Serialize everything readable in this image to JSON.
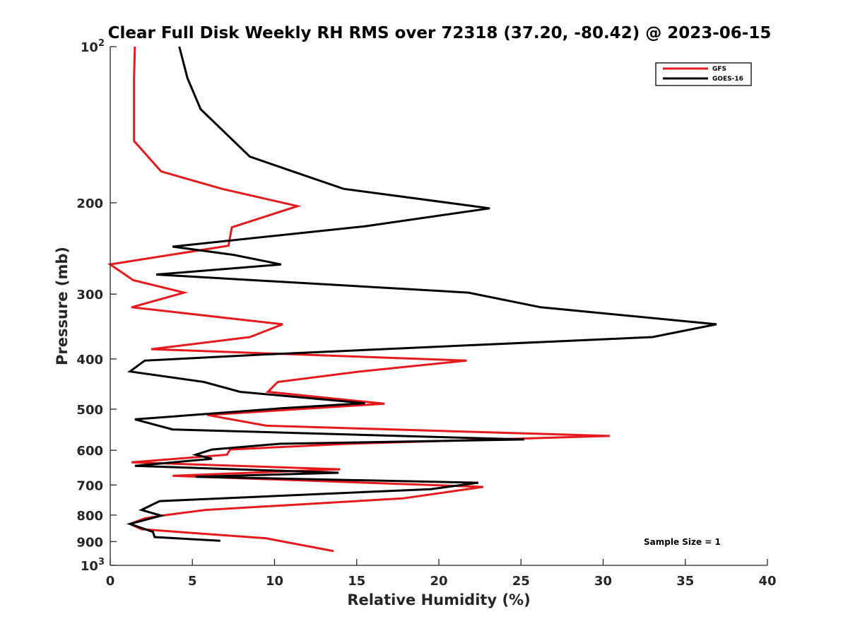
{
  "chart_data": {
    "type": "line",
    "title": "Clear Full Disk Weekly RH RMS over 72318 (37.20, -80.42) @ 2023-06-15",
    "xlabel": "Relative Humidity (%)",
    "ylabel": "Pressure (mb)",
    "xlim": [
      0,
      40
    ],
    "ylim": [
      100,
      1000
    ],
    "y_scale": "log",
    "y_reversed": true,
    "grid": false,
    "legend_position": "top-right",
    "x_ticks": [
      {
        "value": 0,
        "label": "0"
      },
      {
        "value": 5,
        "label": "5"
      },
      {
        "value": 10,
        "label": "10"
      },
      {
        "value": 15,
        "label": "15"
      },
      {
        "value": 20,
        "label": "20"
      },
      {
        "value": 25,
        "label": "25"
      },
      {
        "value": 30,
        "label": "30"
      },
      {
        "value": 35,
        "label": "35"
      },
      {
        "value": 40,
        "label": "40"
      }
    ],
    "y_ticks": [
      {
        "value": 100,
        "base": "10",
        "exp": "2"
      },
      {
        "value": 200,
        "label": "200"
      },
      {
        "value": 300,
        "label": "300"
      },
      {
        "value": 400,
        "label": "400"
      },
      {
        "value": 500,
        "label": "500"
      },
      {
        "value": 600,
        "label": "600"
      },
      {
        "value": 700,
        "label": "700"
      },
      {
        "value": 800,
        "label": "800"
      },
      {
        "value": 900,
        "label": "900"
      },
      {
        "value": 1000,
        "base": "10",
        "exp": "3"
      }
    ],
    "series": [
      {
        "name": "GFS",
        "color": "#e41a1c",
        "points": [
          [
            1.5,
            100
          ],
          [
            1.45,
            115
          ],
          [
            1.45,
            132
          ],
          [
            1.45,
            152
          ],
          [
            3.1,
            174
          ],
          [
            6.8,
            188
          ],
          [
            11.4,
            203
          ],
          [
            7.4,
            223
          ],
          [
            7.2,
            242
          ],
          [
            0,
            263
          ],
          [
            1.4,
            282
          ],
          [
            4.5,
            298
          ],
          [
            1.3,
            318
          ],
          [
            10.5,
            343
          ],
          [
            8.5,
            363
          ],
          [
            2.5,
            383
          ],
          [
            21.7,
            403
          ],
          [
            15.2,
            423
          ],
          [
            10.2,
            443
          ],
          [
            9.6,
            463
          ],
          [
            16.7,
            488
          ],
          [
            5.9,
            513
          ],
          [
            9.5,
            538
          ],
          [
            30.4,
            563
          ],
          [
            14.5,
            583
          ],
          [
            7.3,
            598
          ],
          [
            7.1,
            612
          ],
          [
            1.3,
            633
          ],
          [
            14.0,
            653
          ],
          [
            3.8,
            672
          ],
          [
            22.7,
            706
          ],
          [
            17.8,
            743
          ],
          [
            5.8,
            782
          ],
          [
            3.1,
            802
          ],
          [
            2.1,
            812
          ],
          [
            1.2,
            832
          ],
          [
            1.9,
            852
          ],
          [
            9.5,
            887
          ],
          [
            13.6,
            939
          ]
        ]
      },
      {
        "name": "GOES-16",
        "color": "#000000",
        "points": [
          [
            4.2,
            100
          ],
          [
            4.7,
            115
          ],
          [
            5.5,
            132
          ],
          [
            8.5,
            163
          ],
          [
            14.2,
            188
          ],
          [
            23.1,
            205
          ],
          [
            15.5,
            222
          ],
          [
            3.8,
            243
          ],
          [
            7.5,
            252
          ],
          [
            10.4,
            263
          ],
          [
            2.8,
            275
          ],
          [
            21.8,
            298
          ],
          [
            26.2,
            318
          ],
          [
            36.9,
            343
          ],
          [
            33.0,
            363
          ],
          [
            9.5,
            392
          ],
          [
            2.1,
            403
          ],
          [
            1.2,
            423
          ],
          [
            5.7,
            443
          ],
          [
            7.9,
            463
          ],
          [
            15.5,
            487
          ],
          [
            10.4,
            498
          ],
          [
            1.5,
            523
          ],
          [
            3.8,
            547
          ],
          [
            25.2,
            572
          ],
          [
            10.3,
            583
          ],
          [
            6.2,
            598
          ],
          [
            5.2,
            612
          ],
          [
            6.2,
            623
          ],
          [
            1.5,
            643
          ],
          [
            13.9,
            663
          ],
          [
            5.2,
            675
          ],
          [
            22.4,
            693
          ],
          [
            19.5,
            713
          ],
          [
            3.0,
            752
          ],
          [
            1.9,
            782
          ],
          [
            3.1,
            802
          ],
          [
            1.2,
            832
          ],
          [
            2.6,
            862
          ],
          [
            2.7,
            882
          ],
          [
            6.7,
            897
          ]
        ]
      }
    ],
    "annotations": [
      {
        "text": "Sample Size = 1"
      }
    ]
  }
}
